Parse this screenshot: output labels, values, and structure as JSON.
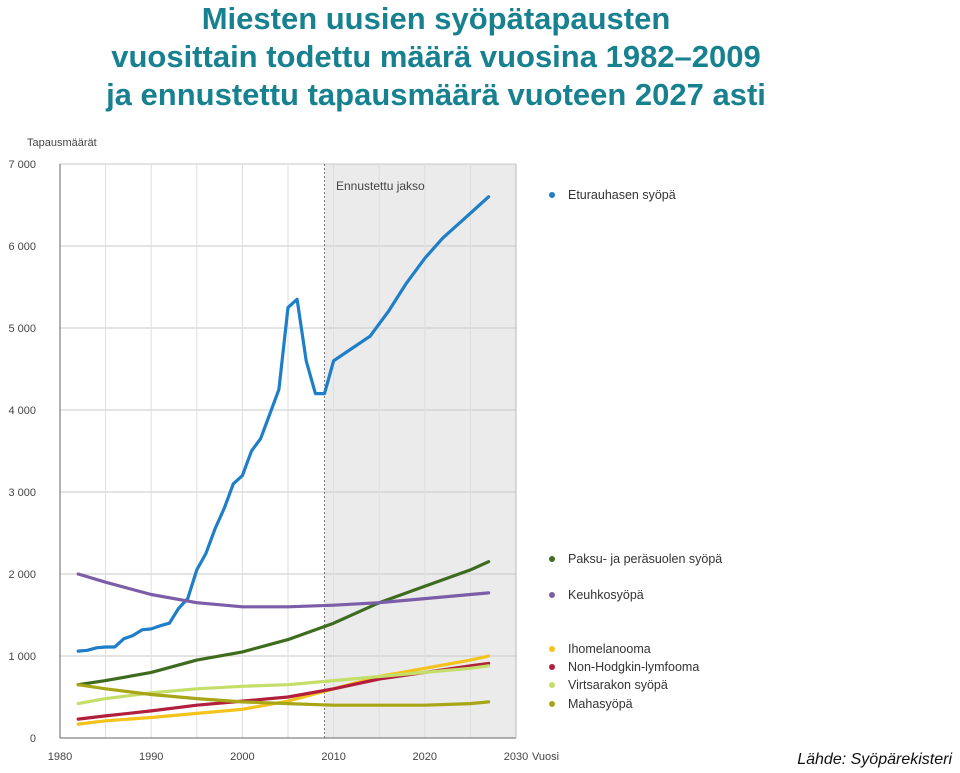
{
  "title_lines": [
    "Miesten uusien syöpätapausten",
    "vuosittain todettu määrä vuosina 1982–2009",
    "ja ennustettu tapausmäärä vuoteen 2027 asti"
  ],
  "source": "Lähde: Syöpärekisteri",
  "chart_data": {
    "type": "line",
    "ylabel": "Tapausmäärät",
    "xlabel": "Vuosi",
    "forecast_label": "Ennustettu jakso",
    "forecast_start": 2009,
    "xlim": [
      1980,
      2030
    ],
    "ylim": [
      0,
      7000
    ],
    "x_ticks": [
      1980,
      1990,
      2000,
      2010,
      2020,
      2030
    ],
    "y_ticks": [
      0,
      1000,
      2000,
      3000,
      4000,
      5000,
      6000,
      7000
    ],
    "x_tick_labels": [
      "1980",
      "1990",
      "2000",
      "2010",
      "2020",
      "2030"
    ],
    "y_tick_labels": [
      "0",
      "1 000",
      "2 000",
      "3 000",
      "4 000",
      "5 000",
      "6 000",
      "7 000"
    ],
    "grid": true,
    "legend_position": "right, beside lines",
    "series": [
      {
        "name": "Eturauhasen syöpä",
        "color": "#1e7ec8",
        "x": [
          1982,
          1983,
          1984,
          1985,
          1986,
          1987,
          1988,
          1989,
          1990,
          1991,
          1992,
          1993,
          1994,
          1995,
          1996,
          1997,
          1998,
          1999,
          2000,
          2001,
          2002,
          2003,
          2004,
          2005,
          2006,
          2007,
          2008,
          2009,
          2010,
          2012,
          2014,
          2016,
          2018,
          2020,
          2022,
          2024,
          2026,
          2027
        ],
        "values": [
          1060,
          1070,
          1100,
          1110,
          1110,
          1210,
          1250,
          1320,
          1330,
          1370,
          1400,
          1580,
          1700,
          2050,
          2250,
          2550,
          2800,
          3100,
          3200,
          3500,
          3650,
          3950,
          4250,
          5250,
          5350,
          4600,
          4200,
          4200,
          4600,
          4750,
          4900,
          5200,
          5550,
          5850,
          6100,
          6300,
          6500,
          6600
        ]
      },
      {
        "name": "Paksu- ja peräsuolen syöpä",
        "color": "#3f6b1f",
        "x": [
          1982,
          1985,
          1990,
          1995,
          2000,
          2005,
          2010,
          2015,
          2020,
          2025,
          2027
        ],
        "values": [
          650,
          700,
          800,
          950,
          1050,
          1200,
          1400,
          1650,
          1850,
          2050,
          2150
        ]
      },
      {
        "name": "Keuhkosyöpä",
        "color": "#7b5ea7",
        "x": [
          1982,
          1985,
          1990,
          1995,
          2000,
          2005,
          2010,
          2015,
          2020,
          2025,
          2027
        ],
        "values": [
          2000,
          1900,
          1750,
          1650,
          1600,
          1600,
          1620,
          1650,
          1700,
          1750,
          1770
        ]
      },
      {
        "name": "Ihomelanooma",
        "color": "#f3c21b",
        "x": [
          1982,
          1985,
          1990,
          1995,
          2000,
          2005,
          2010,
          2015,
          2020,
          2025,
          2027
        ],
        "values": [
          170,
          210,
          250,
          300,
          350,
          450,
          600,
          750,
          850,
          950,
          1000
        ]
      },
      {
        "name": "Non-Hodgkin-lymfooma",
        "color": "#b21f3c",
        "x": [
          1982,
          1985,
          1990,
          1995,
          2000,
          2005,
          2010,
          2015,
          2020,
          2025,
          2027
        ],
        "values": [
          230,
          270,
          330,
          400,
          450,
          500,
          600,
          720,
          800,
          880,
          910
        ]
      },
      {
        "name": "Virtsarakon syöpä",
        "color": "#c4de6a",
        "x": [
          1982,
          1985,
          1990,
          1995,
          2000,
          2005,
          2010,
          2015,
          2020,
          2025,
          2027
        ],
        "values": [
          420,
          480,
          550,
          600,
          630,
          650,
          700,
          750,
          800,
          850,
          880
        ]
      },
      {
        "name": "Mahasyöpä",
        "color": "#a8a616",
        "x": [
          1982,
          1985,
          1990,
          1995,
          2000,
          2005,
          2010,
          2015,
          2020,
          2025,
          2027
        ],
        "values": [
          650,
          600,
          530,
          480,
          440,
          420,
          400,
          400,
          400,
          420,
          440
        ]
      }
    ]
  }
}
